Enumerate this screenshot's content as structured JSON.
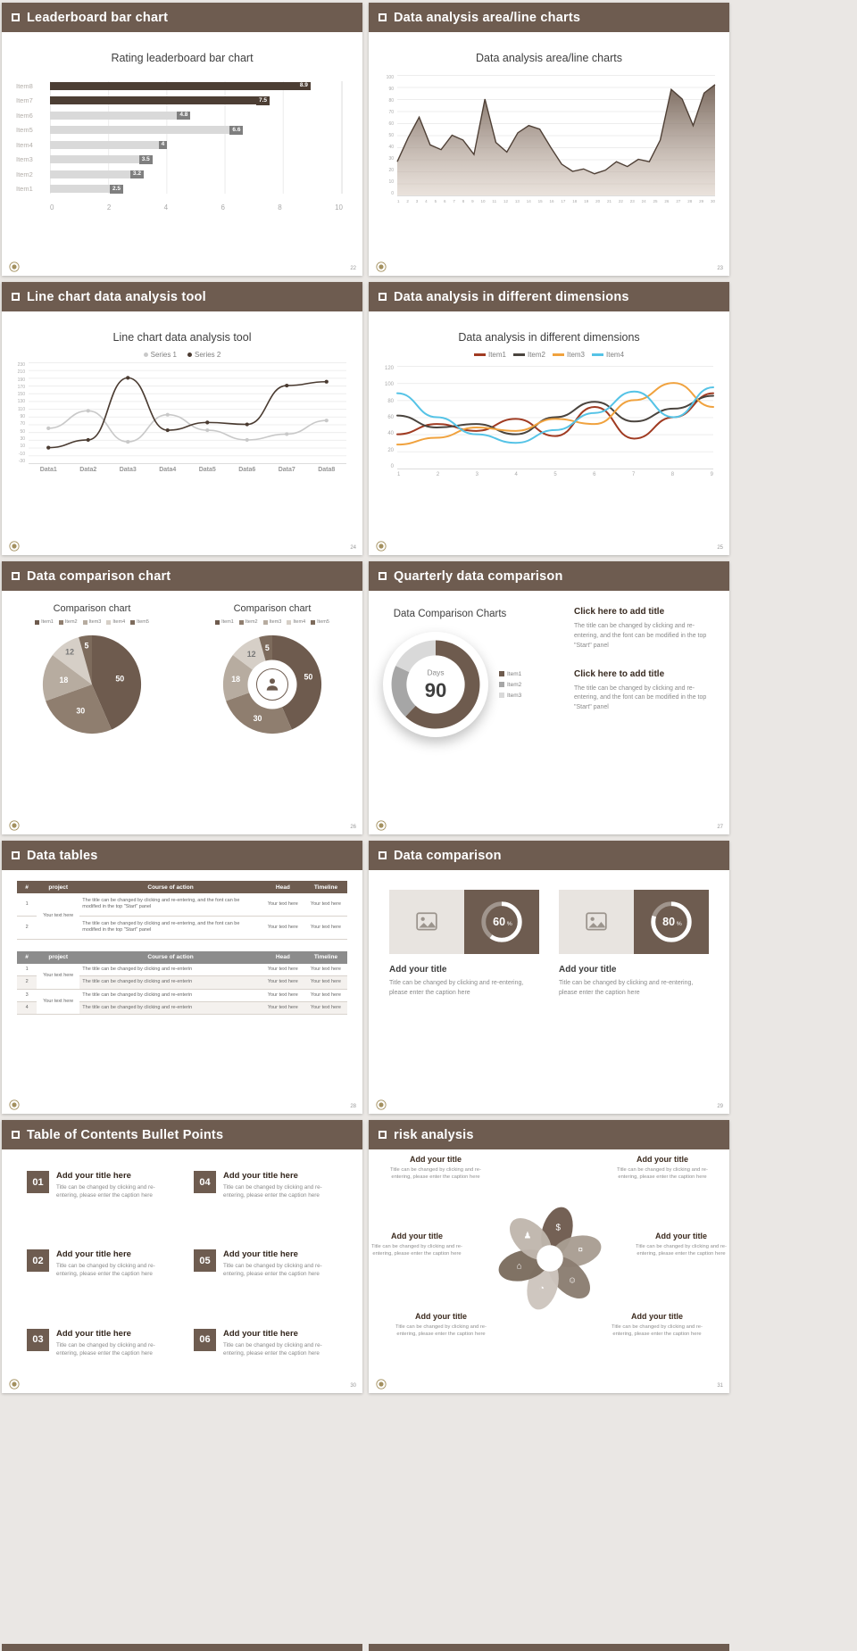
{
  "theme": {
    "header_bg": "#6e5c50",
    "header_text": "#ffffff",
    "canvas_bg": "#eae7e4",
    "slide_bg": "#ffffff",
    "accent_dark": "#4c3e34",
    "gray_bar": "#d9d9d9",
    "text_dark": "#3f3f3f",
    "text_gray": "#8a8a8a"
  },
  "slides": [
    {
      "header": "Leaderboard bar chart",
      "page_num": "22"
    },
    {
      "header": "Data analysis area/line charts",
      "page_num": "23"
    },
    {
      "header": "Line chart data analysis tool",
      "page_num": "24"
    },
    {
      "header": "Data analysis in different dimensions",
      "page_num": "25"
    },
    {
      "header": "Data comparison chart",
      "page_num": "26"
    },
    {
      "header": "Quarterly data comparison",
      "page_num": "27",
      "blocks": [
        {
          "title": "Click here to add title",
          "body": "The title can be changed by clicking and re-entering, and the font can be modified in the top \"Start\" panel"
        },
        {
          "title": "Click here to add title",
          "body": "The title can be changed by clicking and re-entering, and the font can be modified in the top \"Start\" panel"
        }
      ]
    },
    {
      "header": "Data tables",
      "page_num": "28",
      "table1": {
        "headers": [
          "#",
          "project",
          "Course of action",
          "Head",
          "Timeline"
        ],
        "rows": [
          {
            "num": "1",
            "project": "Your text here",
            "action": "The title can be changed by clicking and re-entering, and the font can be modified in the top \"Start\" panel",
            "head": "Your text here",
            "timeline": "Your text here"
          },
          {
            "num": "2",
            "action": "The title can be changed by clicking and re-entering, and the font can be modified in the top \"Start\" panel",
            "head": "Your text here",
            "timeline": "Your text here"
          }
        ]
      },
      "table2": {
        "headers": [
          "#",
          "project",
          "Course of action",
          "Head",
          "Timeline"
        ],
        "rows": [
          {
            "num": "1",
            "project": "Your text here",
            "action": "The title can be changed by clicking and re-enterin",
            "head": "Your text here",
            "timeline": "Your text here"
          },
          {
            "num": "2",
            "action": "The title can be changed by clicking and re-enterin",
            "head": "Your text here",
            "timeline": "Your text here"
          },
          {
            "num": "3",
            "project": "Your text here",
            "action": "The title can be changed by clicking and re-enterin",
            "head": "Your text here",
            "timeline": "Your text here"
          },
          {
            "num": "4",
            "action": "The title can be changed by clicking and re-enterin",
            "head": "Your text here",
            "timeline": "Your text here"
          }
        ]
      }
    },
    {
      "header": "Data comparison",
      "page_num": "29",
      "cards": [
        {
          "title": "Add your title",
          "caption": "Title can be changed by clicking and re-entering, please enter the caption here"
        },
        {
          "title": "Add your title",
          "caption": "Title can be changed by clicking and re-entering, please enter the caption here"
        }
      ]
    },
    {
      "header": "Table of Contents Bullet Points",
      "page_num": "30",
      "items": [
        {
          "num": "01",
          "title": "Add your title here",
          "caption": "Title can be changed by clicking and re-entering, please enter the caption here"
        },
        {
          "num": "02",
          "title": "Add your title here",
          "caption": "Title can be changed by clicking and re-entering, please enter the caption here"
        },
        {
          "num": "03",
          "title": "Add your title here",
          "caption": "Title can be changed by clicking and re-entering, please enter the caption here"
        },
        {
          "num": "04",
          "title": "Add your title here",
          "caption": "Title can be changed by clicking and re-entering, please enter the caption here"
        },
        {
          "num": "05",
          "title": "Add your title here",
          "caption": "Title can be changed by clicking and re-entering, please enter the caption here"
        },
        {
          "num": "06",
          "title": "Add your title here",
          "caption": "Title can be changed by clicking and re-entering, please enter the caption here"
        }
      ]
    },
    {
      "header": "risk analysis",
      "page_num": "31",
      "items": [
        {
          "title": "Add your title",
          "caption": "Title can be changed by clicking and re-entering, please enter the caption here"
        },
        {
          "title": "Add your title",
          "caption": "Title can be changed by clicking and re-entering, please enter the caption here"
        },
        {
          "title": "Add your title",
          "caption": "Title can be changed by clicking and re-entering, please enter the caption here"
        },
        {
          "title": "Add your title",
          "caption": "Title can be changed by clicking and re-entering, please enter the caption here"
        },
        {
          "title": "Add your title",
          "caption": "Title can be changed by clicking and re-entering, please enter the caption here"
        },
        {
          "title": "Add your title",
          "caption": "Title can be changed by clicking and re-entering, please enter the caption here"
        }
      ],
      "petal_colors": [
        "#6e5b4e",
        "#a99d92",
        "#8a7d70",
        "#cdc5bd",
        "#7b6c5e",
        "#bfb6ad"
      ],
      "icons": [
        {
          "name": "money-bag-icon",
          "glyph": "$"
        },
        {
          "name": "coins-icon",
          "glyph": "¤"
        },
        {
          "name": "team-icon",
          "glyph": "☺"
        },
        {
          "name": "pie-chart-icon",
          "glyph": "◔"
        },
        {
          "name": "building-icon",
          "glyph": "⌂"
        },
        {
          "name": "person-icon",
          "glyph": "♟"
        }
      ]
    }
  ],
  "chart_data": [
    {
      "type": "bar",
      "orientation": "horizontal",
      "title": "Rating leaderboard bar chart",
      "categories": [
        "Item8",
        "Item7",
        "Item6",
        "Item5",
        "Item4",
        "Item3",
        "Item2",
        "Item1"
      ],
      "values": [
        8.9,
        7.5,
        4.8,
        6.6,
        4,
        3.5,
        3.2,
        2.5
      ],
      "highlight_count": 2,
      "xlim": [
        0,
        10
      ],
      "xticks": [
        0,
        2,
        4,
        6,
        8,
        10
      ],
      "bar_color": "#d9d9d9",
      "highlight_color": "#4c3e34",
      "label_chip_color": "#7f7f7f",
      "highlight_chip_color": "#4c3e34"
    },
    {
      "type": "area",
      "title": "Data analysis area/line charts",
      "x": [
        1,
        2,
        3,
        4,
        5,
        6,
        7,
        8,
        9,
        10,
        11,
        12,
        13,
        14,
        15,
        16,
        17,
        18,
        19,
        20,
        21,
        22,
        23,
        24,
        25,
        26,
        27,
        28,
        29,
        30
      ],
      "values": [
        28,
        48,
        65,
        42,
        38,
        50,
        46,
        34,
        80,
        44,
        36,
        52,
        58,
        55,
        40,
        26,
        20,
        22,
        18,
        21,
        28,
        24,
        30,
        28,
        46,
        88,
        80,
        58,
        85,
        92
      ],
      "ylim": [
        0,
        100
      ],
      "ytick_step": 10,
      "line_color": "#4f4036",
      "fill_from": "#6e5c50",
      "fill_to": "#d8cabf"
    },
    {
      "type": "line",
      "title": "Line chart data analysis tool",
      "categories": [
        "Data1",
        "Data2",
        "Data3",
        "Data4",
        "Data5",
        "Data6",
        "Data7",
        "Data8"
      ],
      "series": [
        {
          "name": "Series 1",
          "color": "#c9c9c9",
          "values": [
            60,
            105,
            25,
            95,
            55,
            30,
            45,
            80
          ]
        },
        {
          "name": "Series 2",
          "color": "#4a3b31",
          "values": [
            10,
            30,
            190,
            55,
            75,
            70,
            170,
            180
          ]
        }
      ],
      "ylim": [
        -30,
        230
      ],
      "ytick_step": 20
    },
    {
      "type": "line",
      "smooth": true,
      "title": "Data analysis in different dimensions",
      "x": [
        1,
        2,
        3,
        4,
        5,
        6,
        7,
        8,
        9
      ],
      "series": [
        {
          "name": "Item1",
          "color": "#a03b22",
          "values": [
            40,
            52,
            44,
            58,
            38,
            72,
            35,
            60,
            88
          ]
        },
        {
          "name": "Item2",
          "color": "#4a443e",
          "values": [
            62,
            48,
            52,
            40,
            60,
            78,
            55,
            70,
            85
          ]
        },
        {
          "name": "Item3",
          "color": "#f0a23e",
          "values": [
            28,
            36,
            48,
            44,
            58,
            52,
            80,
            100,
            72
          ]
        },
        {
          "name": "Item4",
          "color": "#55c3e6",
          "values": [
            88,
            60,
            40,
            30,
            45,
            65,
            90,
            60,
            95
          ]
        }
      ],
      "ylim": [
        0,
        120
      ],
      "ytick_step": 20
    },
    {
      "type": "pie",
      "title": "Comparison chart",
      "labels": [
        "Item1",
        "Item2",
        "Item3",
        "Item4",
        "Item5"
      ],
      "values": [
        50,
        30,
        18,
        12,
        5
      ],
      "colors": [
        "#6e5b4e",
        "#8f7e6f",
        "#b7aca0",
        "#d6cfc7",
        "#7d6b5c"
      ]
    },
    {
      "type": "pie",
      "subtype": "donut",
      "title": "Comparison chart",
      "labels": [
        "Item1",
        "Item2",
        "Item3",
        "Item4",
        "Item5"
      ],
      "values": [
        50,
        30,
        18,
        12,
        5
      ],
      "colors": [
        "#6e5b4e",
        "#8f7e6f",
        "#b7aca0",
        "#d6cfc7",
        "#7d6b5c"
      ]
    },
    {
      "type": "pie",
      "subtype": "donut",
      "title": "Data Comparison Charts",
      "labels": [
        "Item1",
        "Item2",
        "Item3"
      ],
      "values": [
        62,
        20,
        18
      ],
      "colors": [
        "#6e5b4e",
        "#a6a6a6",
        "#d9d9d9"
      ],
      "center_label": "Days",
      "center_value": "90"
    },
    {
      "type": "gauge",
      "values": [
        60,
        80
      ],
      "unit": "%"
    }
  ]
}
